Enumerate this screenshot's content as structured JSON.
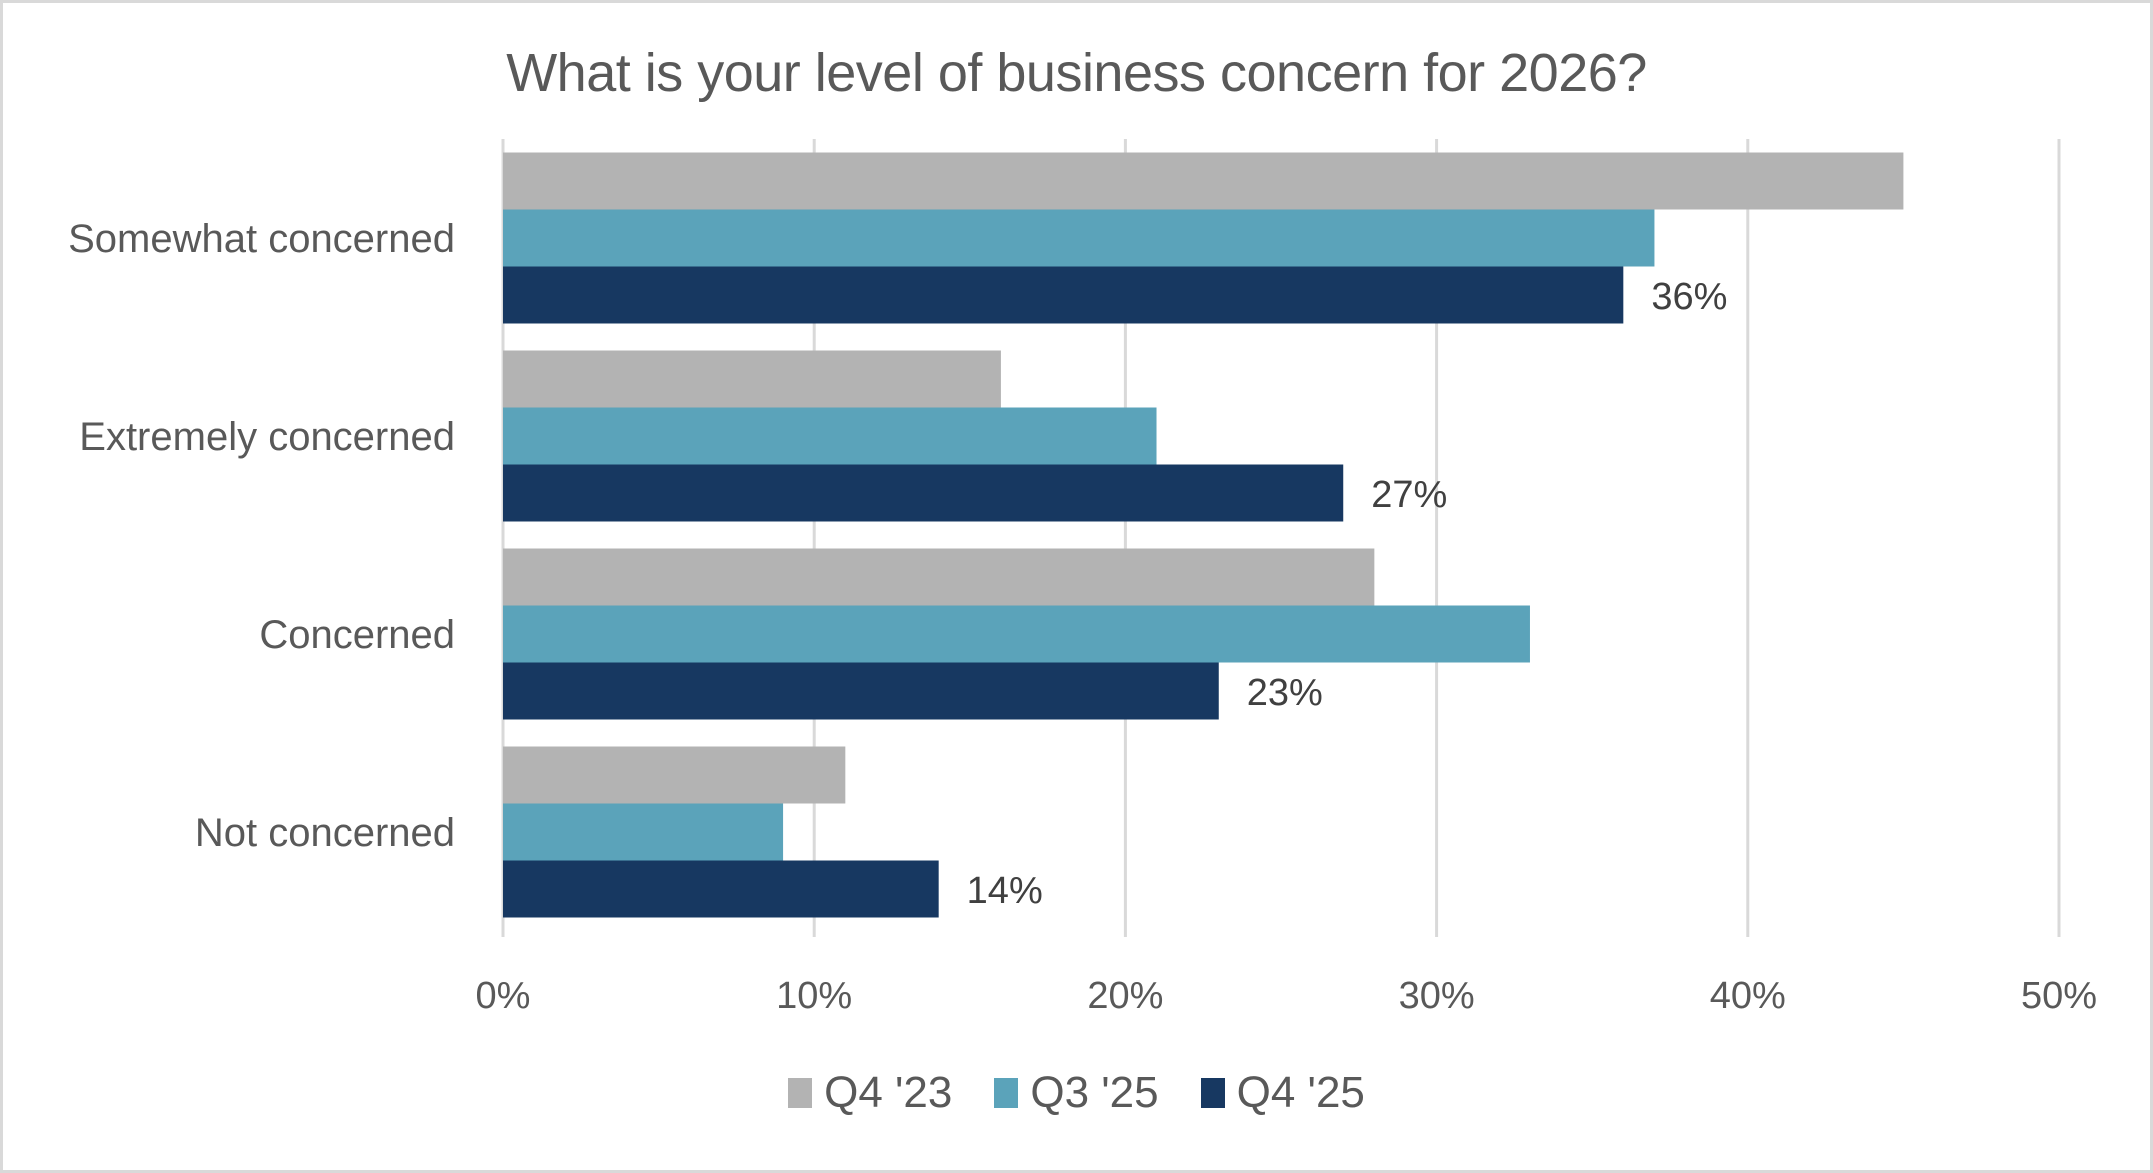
{
  "chart_data": {
    "type": "bar",
    "orientation": "horizontal",
    "title": "What is your level of business concern for 2026?",
    "categories": [
      "Somewhat concerned",
      "Extremely concerned",
      "Concerned",
      "Not concerned"
    ],
    "series": [
      {
        "name": "Q4 '23",
        "color": "#b3b3b3",
        "values": [
          45,
          16,
          28,
          11
        ]
      },
      {
        "name": "Q3 '25",
        "color": "#5ba3ba",
        "values": [
          37,
          21,
          33,
          9
        ]
      },
      {
        "name": "Q4 '25",
        "color": "#173861",
        "values": [
          36,
          27,
          23,
          14
        ]
      }
    ],
    "data_labels": {
      "series": "Q4 '25",
      "labels": [
        "36%",
        "27%",
        "23%",
        "14%"
      ]
    },
    "xlim": [
      0,
      50
    ],
    "x_ticks": [
      "0%",
      "10%",
      "20%",
      "30%",
      "40%",
      "50%"
    ],
    "xlabel": "",
    "ylabel": "",
    "grid": "vertical",
    "legend_position": "bottom"
  }
}
